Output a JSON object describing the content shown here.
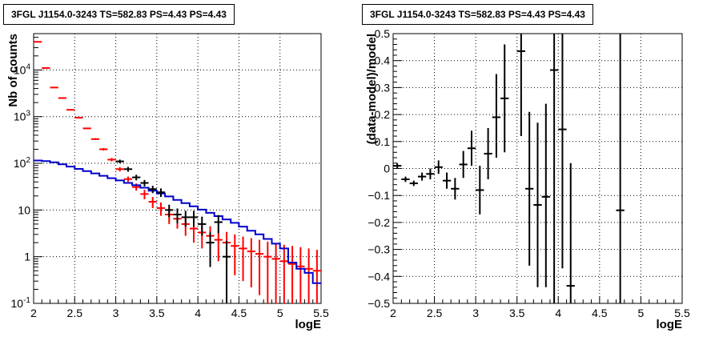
{
  "chart_data": [
    {
      "type": "scatter",
      "title": "3FGL J1154.0-3243 TS=582.83 PS=4.43 PS=4.43",
      "xlabel": "logE",
      "ylabel": "Nb of counts",
      "xlim": [
        2,
        5.5
      ],
      "ylim": [
        0.1,
        60000
      ],
      "yscale": "log",
      "grid": true,
      "x_ticks": [
        "2",
        "2.5",
        "3",
        "3.5",
        "4",
        "4.5",
        "5",
        "5.5"
      ],
      "y_ticks": [
        "10^-1",
        "1",
        "10",
        "10^2",
        "10^3",
        "10^4"
      ],
      "y_tick_values": [
        0.1,
        1,
        10,
        100,
        1000,
        10000
      ],
      "x_bin_edges": [
        2.0,
        2.1,
        2.2,
        2.3,
        2.4,
        2.5,
        2.6,
        2.7,
        2.8,
        2.9,
        3.0,
        3.1,
        3.2,
        3.3,
        3.4,
        3.5,
        3.6,
        3.7,
        3.8,
        3.9,
        4.0,
        4.1,
        4.2,
        4.3,
        4.4,
        4.5,
        4.6,
        4.7,
        4.8,
        4.9,
        5.0,
        5.1,
        5.2,
        5.3,
        5.4,
        5.5
      ],
      "series": [
        {
          "color": "#ff0000",
          "kind": "points",
          "points": [
            {
              "x": 2.05,
              "y": 40000,
              "lo": 39600,
              "hi": 40400
            },
            {
              "x": 2.15,
              "y": 11000,
              "lo": 10800,
              "hi": 11200
            },
            {
              "x": 2.25,
              "y": 4200,
              "lo": 4130,
              "hi": 4270
            },
            {
              "x": 2.35,
              "y": 2500,
              "lo": 2450,
              "hi": 2550
            },
            {
              "x": 2.45,
              "y": 1400,
              "lo": 1360,
              "hi": 1440
            },
            {
              "x": 2.55,
              "y": 950,
              "lo": 920,
              "hi": 980
            },
            {
              "x": 2.65,
              "y": 560,
              "lo": 540,
              "hi": 580
            },
            {
              "x": 2.75,
              "y": 330,
              "lo": 315,
              "hi": 345
            },
            {
              "x": 2.85,
              "y": 200,
              "lo": 188,
              "hi": 212
            },
            {
              "x": 2.95,
              "y": 120,
              "lo": 110,
              "hi": 130
            },
            {
              "x": 3.05,
              "y": 75,
              "lo": 67,
              "hi": 83
            },
            {
              "x": 3.15,
              "y": 46,
              "lo": 40,
              "hi": 52
            },
            {
              "x": 3.25,
              "y": 31,
              "lo": 26,
              "hi": 37
            },
            {
              "x": 3.35,
              "y": 22,
              "lo": 17,
              "hi": 27
            },
            {
              "x": 3.45,
              "y": 15,
              "lo": 11,
              "hi": 19
            },
            {
              "x": 3.55,
              "y": 11,
              "lo": 7.5,
              "hi": 14.5
            },
            {
              "x": 3.65,
              "y": 8,
              "lo": 5,
              "hi": 11
            },
            {
              "x": 3.75,
              "y": 6.5,
              "lo": 4,
              "hi": 9
            },
            {
              "x": 3.85,
              "y": 5,
              "lo": 2.8,
              "hi": 7.2
            },
            {
              "x": 3.95,
              "y": 4,
              "lo": 2,
              "hi": 6
            },
            {
              "x": 4.05,
              "y": 3.3,
              "lo": 1.5,
              "hi": 5.1
            },
            {
              "x": 4.15,
              "y": 2.8,
              "lo": 1.1,
              "hi": 4.5
            },
            {
              "x": 4.25,
              "y": 2.3,
              "lo": 0.8,
              "hi": 3.8
            },
            {
              "x": 4.35,
              "y": 2,
              "lo": 0.6,
              "hi": 3.4
            },
            {
              "x": 4.45,
              "y": 1.7,
              "lo": 0.4,
              "hi": 3
            },
            {
              "x": 4.55,
              "y": 1.5,
              "lo": 0.3,
              "hi": 2.7
            },
            {
              "x": 4.65,
              "y": 1.3,
              "lo": 0.22,
              "hi": 2.5
            },
            {
              "x": 4.75,
              "y": 1.15,
              "lo": 0.15,
              "hi": 2.3
            },
            {
              "x": 4.85,
              "y": 1,
              "lo": 0.1,
              "hi": 2.1
            },
            {
              "x": 4.95,
              "y": 0.9,
              "lo": 0.1,
              "hi": 1.9
            },
            {
              "x": 5.05,
              "y": 0.8,
              "lo": 0.1,
              "hi": 1.8
            },
            {
              "x": 5.15,
              "y": 0.7,
              "lo": 0.1,
              "hi": 1.7
            },
            {
              "x": 5.25,
              "y": 0.62,
              "lo": 0.1,
              "hi": 1.6
            },
            {
              "x": 5.35,
              "y": 0.55,
              "lo": 0.1,
              "hi": 1.5
            },
            {
              "x": 5.45,
              "y": 0.5,
              "lo": 0.1,
              "hi": 1.4
            }
          ]
        },
        {
          "color": "#0000cc",
          "kind": "step",
          "values": [
            115,
            112,
            105,
            95,
            85,
            76,
            68,
            61,
            54,
            48,
            43,
            38,
            34,
            30,
            26,
            22.5,
            19.5,
            16.5,
            14,
            12,
            10.2,
            8.7,
            7.4,
            6.3,
            5.3,
            4.4,
            3.6,
            3,
            2.4,
            1.9,
            1.5,
            0.75,
            0.55,
            0.45,
            0.27
          ]
        },
        {
          "color": "#000000",
          "kind": "points",
          "points": [
            {
              "x": 3.05,
              "y": 110,
              "lo": 100,
              "hi": 120
            },
            {
              "x": 3.15,
              "y": 75,
              "lo": 66,
              "hi": 84
            },
            {
              "x": 3.25,
              "y": 50,
              "lo": 43,
              "hi": 57
            },
            {
              "x": 3.35,
              "y": 38,
              "lo": 32,
              "hi": 44
            },
            {
              "x": 3.45,
              "y": 28,
              "lo": 23,
              "hi": 33
            },
            {
              "x": 3.55,
              "y": 24,
              "lo": 19,
              "hi": 29
            },
            {
              "x": 3.65,
              "y": 10,
              "lo": 7,
              "hi": 13
            },
            {
              "x": 3.75,
              "y": 8,
              "lo": 5.2,
              "hi": 10.8
            },
            {
              "x": 3.85,
              "y": 7,
              "lo": 4.4,
              "hi": 9.6
            },
            {
              "x": 3.95,
              "y": 7,
              "lo": 4.4,
              "hi": 9.6
            },
            {
              "x": 4.05,
              "y": 5,
              "lo": 2.8,
              "hi": 7.2
            },
            {
              "x": 4.15,
              "y": 2,
              "lo": 0.6,
              "hi": 3.4
            },
            {
              "x": 4.25,
              "y": 5.5,
              "lo": 3.2,
              "hi": 7.8
            },
            {
              "x": 4.35,
              "y": 1,
              "lo": 0.1,
              "hi": 2.2
            }
          ]
        }
      ]
    },
    {
      "type": "scatter",
      "title": "3FGL J1154.0-3243 TS=582.83 PS=4.43 PS=4.43",
      "xlabel": "logE",
      "ylabel": "(data-model)/model",
      "xlim": [
        2,
        5.5
      ],
      "ylim": [
        -0.5,
        0.5
      ],
      "grid": true,
      "x_ticks": [
        "2",
        "2.5",
        "3",
        "3.5",
        "4",
        "4.5",
        "5",
        "5.5"
      ],
      "y_ticks": [
        "-0.5",
        "-0.4",
        "-0.3",
        "-0.2",
        "-0.1",
        "0",
        "0.1",
        "0.2",
        "0.3",
        "0.4",
        "0.5"
      ],
      "y_tick_values": [
        -0.5,
        -0.4,
        -0.3,
        -0.2,
        -0.1,
        0,
        0.1,
        0.2,
        0.3,
        0.4,
        0.5
      ],
      "series": [
        {
          "color": "#000000",
          "kind": "points",
          "points": [
            {
              "x": 2.05,
              "y": 0.01,
              "lo": 0.0,
              "hi": 0.02
            },
            {
              "x": 2.15,
              "y": -0.04,
              "lo": -0.05,
              "hi": -0.03
            },
            {
              "x": 2.25,
              "y": -0.055,
              "lo": -0.065,
              "hi": -0.045
            },
            {
              "x": 2.35,
              "y": -0.03,
              "lo": -0.045,
              "hi": -0.015
            },
            {
              "x": 2.45,
              "y": -0.02,
              "lo": -0.04,
              "hi": 0.0
            },
            {
              "x": 2.55,
              "y": 0.005,
              "lo": -0.02,
              "hi": 0.03
            },
            {
              "x": 2.65,
              "y": -0.045,
              "lo": -0.075,
              "hi": -0.015
            },
            {
              "x": 2.75,
              "y": -0.075,
              "lo": -0.115,
              "hi": -0.035
            },
            {
              "x": 2.85,
              "y": 0.015,
              "lo": -0.035,
              "hi": 0.065
            },
            {
              "x": 2.95,
              "y": 0.075,
              "lo": 0.01,
              "hi": 0.14
            },
            {
              "x": 3.05,
              "y": -0.08,
              "lo": -0.17,
              "hi": 0.01
            },
            {
              "x": 3.15,
              "y": 0.055,
              "lo": -0.04,
              "hi": 0.15
            },
            {
              "x": 3.25,
              "y": 0.19,
              "lo": 0.04,
              "hi": 0.35
            },
            {
              "x": 3.35,
              "y": 0.26,
              "lo": 0.06,
              "hi": 0.46
            },
            {
              "x": 3.55,
              "y": 0.435,
              "lo": 0.12,
              "hi": 0.5
            },
            {
              "x": 3.65,
              "y": -0.075,
              "lo": -0.36,
              "hi": 0.21
            },
            {
              "x": 3.75,
              "y": -0.135,
              "lo": -0.44,
              "hi": 0.17
            },
            {
              "x": 3.85,
              "y": -0.105,
              "lo": -0.44,
              "hi": 0.24
            },
            {
              "x": 3.95,
              "y": 0.365,
              "lo": -0.5,
              "hi": 0.5
            },
            {
              "x": 4.05,
              "y": 0.145,
              "lo": -0.37,
              "hi": 0.5
            },
            {
              "x": 4.15,
              "y": -0.435,
              "lo": -0.5,
              "hi": 0.02
            },
            {
              "x": 4.75,
              "y": -0.155,
              "lo": -0.5,
              "hi": 0.5
            }
          ]
        }
      ]
    }
  ]
}
